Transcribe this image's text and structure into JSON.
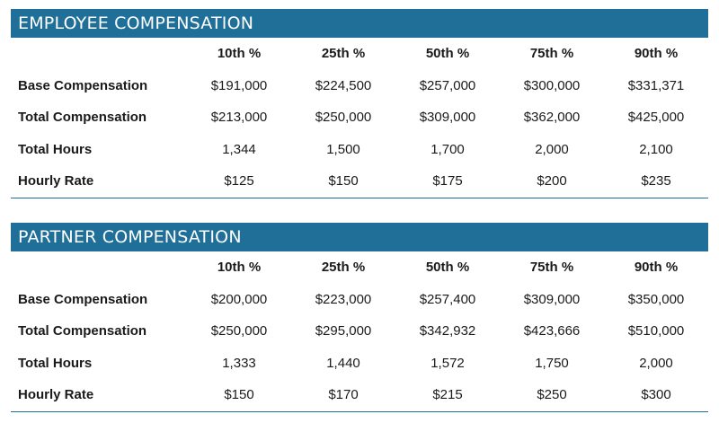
{
  "columns": [
    "10th %",
    "25th %",
    "50th %",
    "75th %",
    "90th %"
  ],
  "employee": {
    "title": "EMPLOYEE COMPENSATION",
    "rows": [
      {
        "label": "Base Compensation",
        "values": [
          "$191,000",
          "$224,500",
          "$257,000",
          "$300,000",
          "$331,371"
        ]
      },
      {
        "label": "Total Compensation",
        "values": [
          "$213,000",
          "$250,000",
          "$309,000",
          "$362,000",
          "$425,000"
        ]
      },
      {
        "label": "Total Hours",
        "values": [
          "1,344",
          "1,500",
          "1,700",
          "2,000",
          "2,100"
        ]
      },
      {
        "label": "Hourly Rate",
        "values": [
          "$125",
          "$150",
          "$175",
          "$200",
          "$235"
        ]
      }
    ]
  },
  "partner": {
    "title": "PARTNER COMPENSATION",
    "rows": [
      {
        "label": "Base Compensation",
        "values": [
          "$200,000",
          "$223,000",
          "$257,400",
          "$309,000",
          "$350,000"
        ]
      },
      {
        "label": "Total Compensation",
        "values": [
          "$250,000",
          "$295,000",
          "$342,932",
          "$423,666",
          "$510,000"
        ]
      },
      {
        "label": "Total Hours",
        "values": [
          "1,333",
          "1,440",
          "1,572",
          "1,750",
          "2,000"
        ]
      },
      {
        "label": "Hourly Rate",
        "values": [
          "$150",
          "$170",
          "$215",
          "$250",
          "$300"
        ]
      }
    ]
  },
  "colors": {
    "header_bg": "#1f6f99",
    "header_text": "#ffffff"
  }
}
